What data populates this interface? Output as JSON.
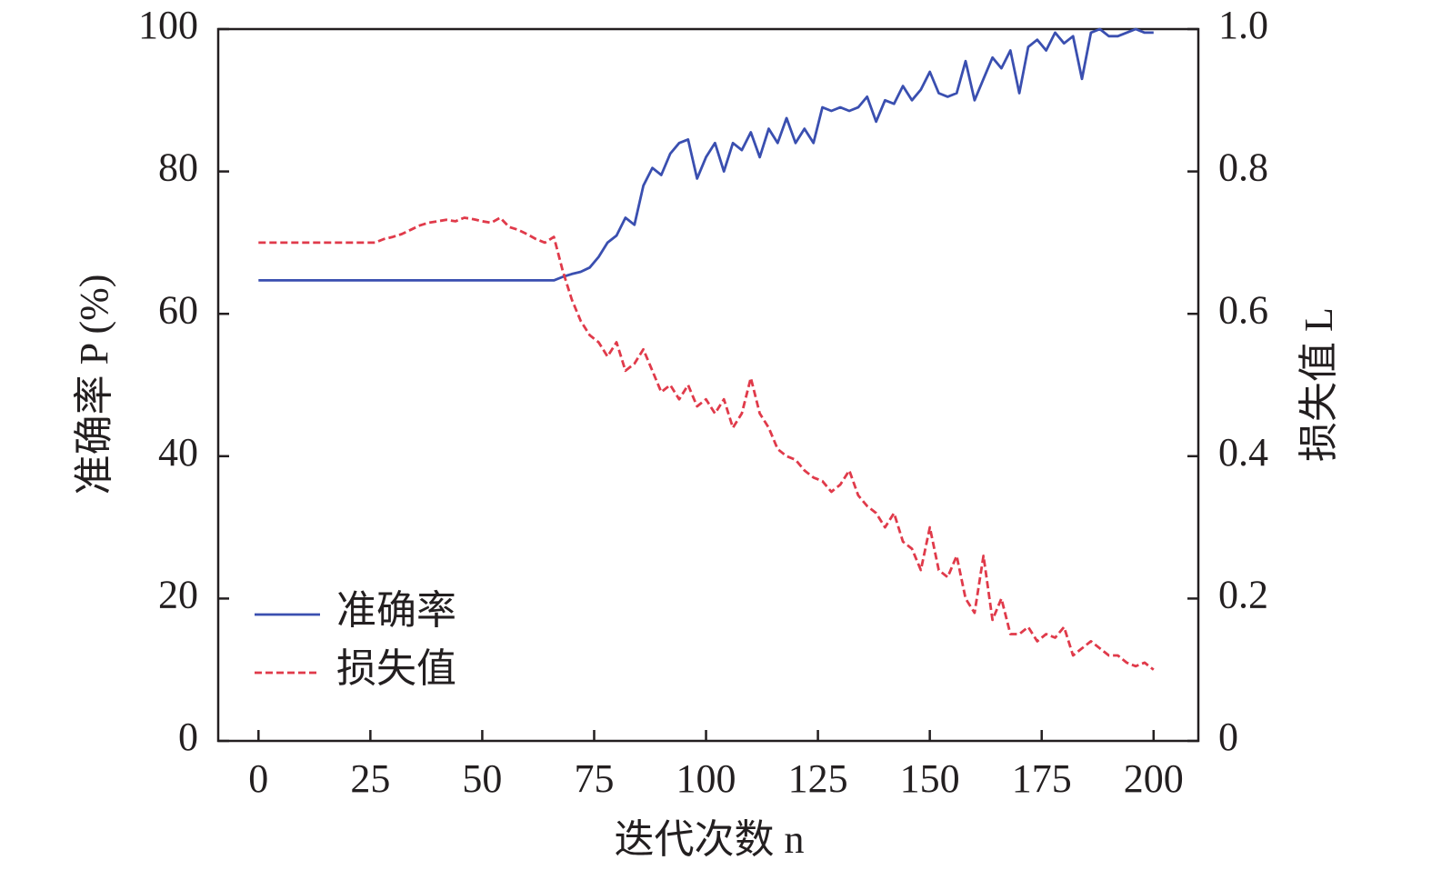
{
  "chart_data": {
    "type": "line",
    "xlabel": "迭代次数 n",
    "ylabel": "准确率 P (%)",
    "y2label": "损失值 L",
    "x": [
      0,
      2,
      4,
      6,
      8,
      10,
      12,
      14,
      16,
      18,
      20,
      22,
      24,
      26,
      28,
      30,
      32,
      34,
      36,
      38,
      40,
      42,
      44,
      46,
      48,
      50,
      52,
      54,
      56,
      58,
      60,
      62,
      64,
      66,
      68,
      70,
      72,
      74,
      76,
      78,
      80,
      82,
      84,
      86,
      88,
      90,
      92,
      94,
      96,
      98,
      100,
      102,
      104,
      106,
      108,
      110,
      112,
      114,
      116,
      118,
      120,
      122,
      124,
      126,
      128,
      130,
      132,
      134,
      136,
      138,
      140,
      142,
      144,
      146,
      148,
      150,
      152,
      154,
      156,
      158,
      160,
      162,
      164,
      166,
      168,
      170,
      172,
      174,
      176,
      178,
      180,
      182,
      184,
      186,
      188,
      190,
      192,
      194,
      196,
      198,
      200
    ],
    "series": [
      {
        "name": "准确率",
        "color": "#3a4fb0",
        "linestyle": "solid",
        "values": [
          64.7,
          64.7,
          64.7,
          64.7,
          64.7,
          64.7,
          64.7,
          64.7,
          64.7,
          64.7,
          64.7,
          64.7,
          64.7,
          64.7,
          64.7,
          64.7,
          64.7,
          64.7,
          64.7,
          64.7,
          64.7,
          64.7,
          64.7,
          64.7,
          64.7,
          64.7,
          64.7,
          64.7,
          64.7,
          64.7,
          64.7,
          64.7,
          64.7,
          64.7,
          65.2,
          65.6,
          65.9,
          66.5,
          68,
          70,
          71,
          73.5,
          72.5,
          78,
          80.5,
          79.5,
          82.5,
          84,
          84.5,
          79,
          82,
          84,
          80,
          84,
          83,
          85.5,
          82,
          86,
          84,
          87.5,
          84,
          86,
          84,
          89,
          88.5,
          89,
          88.5,
          89,
          90.5,
          87,
          90,
          89.5,
          92,
          90,
          91.5,
          94,
          91,
          90.5,
          91,
          95.5,
          90,
          93,
          96,
          94.5,
          97,
          91,
          97.5,
          98.5,
          97,
          99.5,
          98,
          99,
          93,
          99.5,
          100,
          99,
          99,
          99.5,
          100,
          99.5,
          99.5
        ]
      },
      {
        "name": "损失值",
        "color": "#e03a4a",
        "linestyle": "dashed",
        "axis": "y2",
        "values": [
          0.7,
          0.7,
          0.7,
          0.7,
          0.7,
          0.7,
          0.7,
          0.7,
          0.7,
          0.7,
          0.7,
          0.7,
          0.7,
          0.7,
          0.705,
          0.708,
          0.712,
          0.718,
          0.724,
          0.728,
          0.73,
          0.732,
          0.73,
          0.735,
          0.733,
          0.73,
          0.728,
          0.735,
          0.722,
          0.718,
          0.712,
          0.705,
          0.7,
          0.708,
          0.66,
          0.62,
          0.59,
          0.57,
          0.56,
          0.54,
          0.56,
          0.52,
          0.53,
          0.55,
          0.52,
          0.49,
          0.5,
          0.48,
          0.5,
          0.47,
          0.48,
          0.46,
          0.48,
          0.44,
          0.46,
          0.51,
          0.46,
          0.44,
          0.41,
          0.4,
          0.395,
          0.38,
          0.37,
          0.365,
          0.35,
          0.36,
          0.38,
          0.345,
          0.33,
          0.32,
          0.3,
          0.32,
          0.28,
          0.27,
          0.24,
          0.3,
          0.24,
          0.23,
          0.26,
          0.2,
          0.18,
          0.26,
          0.17,
          0.2,
          0.15,
          0.15,
          0.16,
          0.14,
          0.15,
          0.145,
          0.16,
          0.12,
          0.13,
          0.14,
          0.13,
          0.12,
          0.12,
          0.11,
          0.105,
          0.11,
          0.1
        ]
      }
    ],
    "xlim": [
      -9,
      210
    ],
    "xticks": [
      0,
      25,
      50,
      75,
      100,
      125,
      150,
      175,
      200
    ],
    "ylim": [
      0,
      100
    ],
    "yticks": [
      0,
      20,
      40,
      60,
      80,
      100
    ],
    "y2lim": [
      0,
      1
    ],
    "y2ticks": [
      0,
      0.2,
      0.4,
      0.6,
      0.8,
      {
        "value": 1,
        "label": "1.0"
      }
    ],
    "legend": "lower left"
  }
}
